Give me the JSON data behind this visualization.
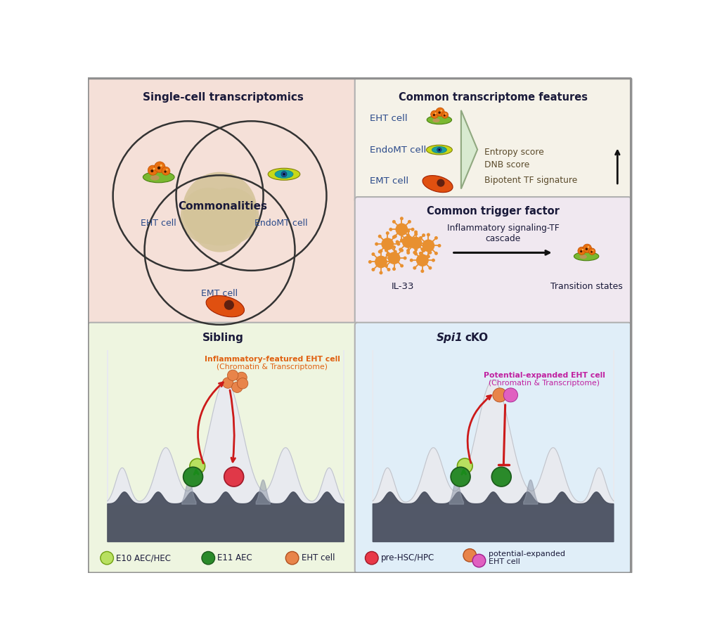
{
  "title": "",
  "panel_bg_topleft": "#f5e0d8",
  "panel_bg_topright_top": "#f5f2e8",
  "panel_bg_topright_bottom": "#f0e8f0",
  "panel_bg_bottomleft": "#eef5e0",
  "panel_bg_bottomright": "#e0eef8",
  "border_color": "#b0b0b0",
  "text_color_dark": "#1a1a3a",
  "venn_circle_color": "#333333",
  "venn_fill": "#d4c49a",
  "panel1_title": "Single-cell transcriptomics",
  "panel2_title": "Common transcriptome features",
  "panel3_title": "Sibling",
  "panel4_title": "Spi1 cKO",
  "panel2_labels": [
    "EHT cell",
    "EndoMT cell",
    "EMT cell"
  ],
  "panel2_features": [
    "Entropy score",
    "DNB score",
    "Bipotent TF signature"
  ],
  "panel3_label1": "Inflammatory-featured EHT cell",
  "panel3_label2": "(Chromatin & Transcriptome)",
  "panel4_label1": "Potential-expanded EHT cell",
  "panel4_label2": "(Chromatin & Transcriptome)",
  "trigger_title": "Common trigger factor",
  "trigger_label": "Inflammatory signaling-TF\ncascade",
  "il33_label": "IL-33",
  "transition_label": "Transition states",
  "legend_items": [
    "E10 AEC/HEC",
    "E11 AEC",
    "EHT cell",
    "pre-HSC/HPC",
    "potential-expanded\nEHT cell"
  ],
  "legend_colors_single": [
    "#b8e060",
    "#2a8a2a",
    "#e8844a",
    "#e83848"
  ],
  "eht_venn_label": "EHT cell",
  "endomt_venn_label": "EndoMT cell",
  "emt_venn_label": "EMT cell",
  "commonalities_label": "Commonalities"
}
